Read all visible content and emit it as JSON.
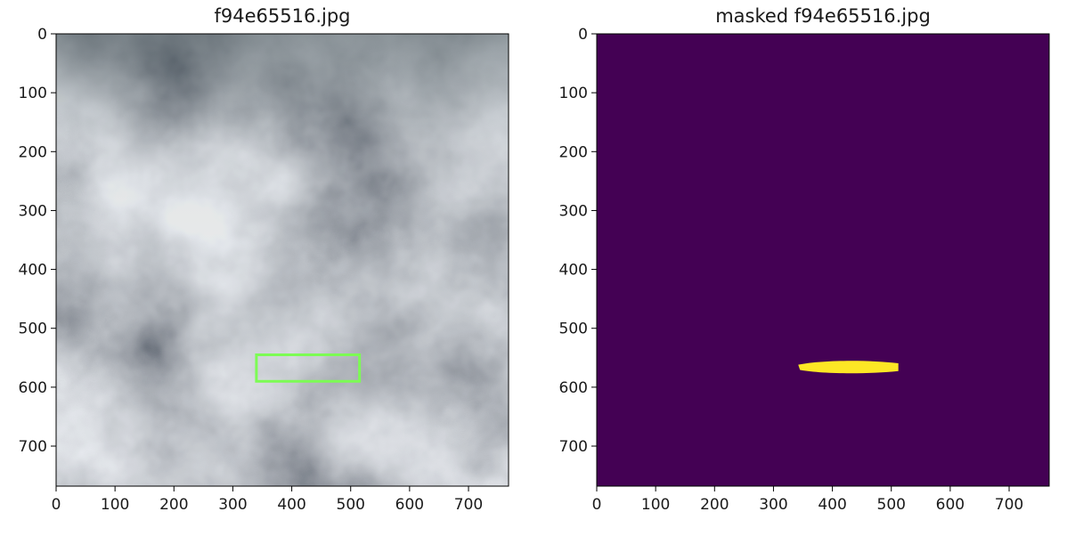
{
  "chart_data": [
    {
      "type": "image",
      "title": "f94e65516.jpg",
      "xlim": [
        0,
        768
      ],
      "ylim": [
        768,
        0
      ],
      "xticks": [
        0,
        100,
        200,
        300,
        400,
        500,
        600,
        700
      ],
      "yticks": [
        0,
        100,
        200,
        300,
        400,
        500,
        600,
        700
      ],
      "image_content": "grayscale cloud texture photo",
      "annotations": [
        {
          "type": "rectangle",
          "x0": 340,
          "y0": 545,
          "x1": 515,
          "y1": 590,
          "color": "#7CFC54"
        }
      ]
    },
    {
      "type": "heatmap",
      "title": "masked f94e65516.jpg",
      "xlim": [
        0,
        768
      ],
      "ylim": [
        768,
        0
      ],
      "xticks": [
        0,
        100,
        200,
        300,
        400,
        500,
        600,
        700
      ],
      "yticks": [
        0,
        100,
        200,
        300,
        400,
        500,
        600,
        700
      ],
      "colormap": "viridis",
      "background_color": "#440154",
      "mask_color": "#FDE725",
      "mask_region": {
        "x0": 342,
        "x1": 512,
        "y_center": 566,
        "half_height": 12
      }
    }
  ]
}
